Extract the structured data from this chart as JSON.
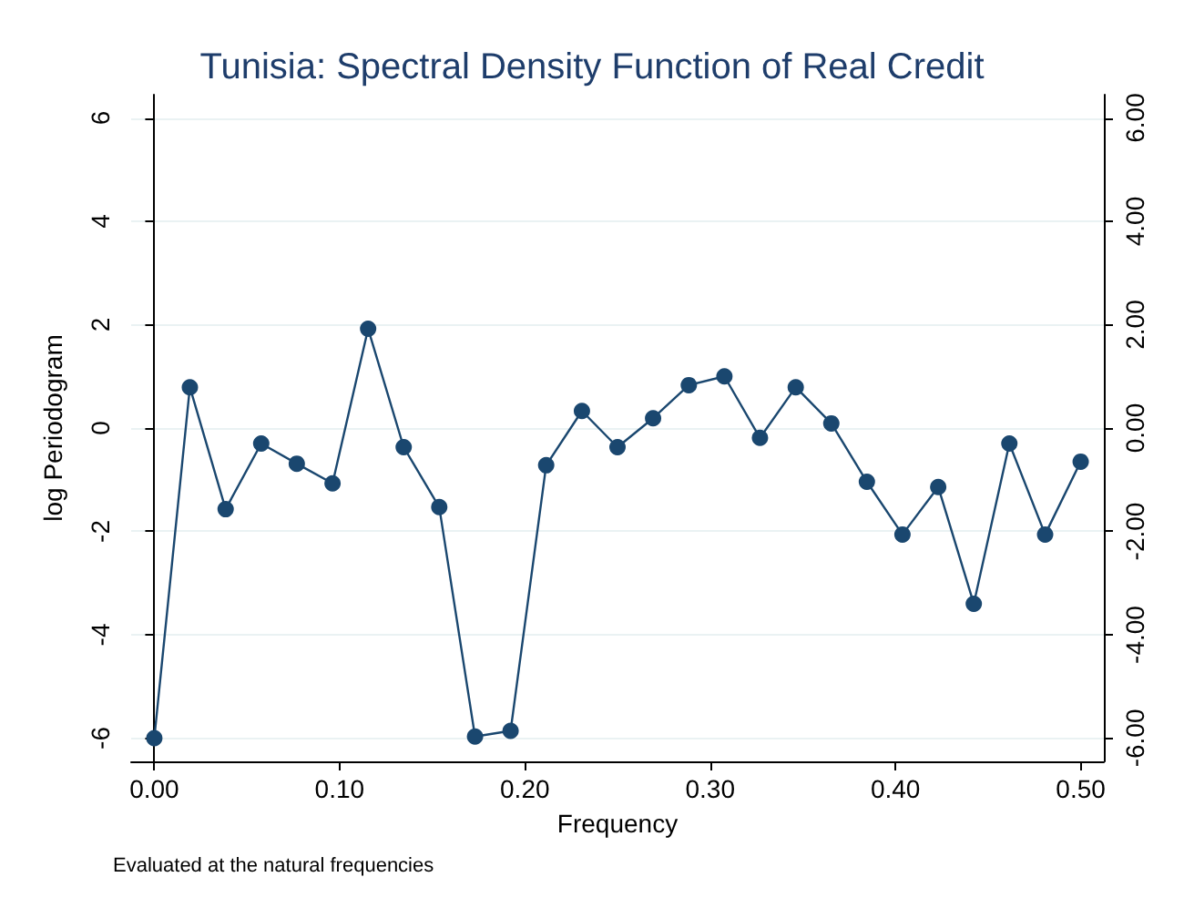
{
  "chart_data": {
    "type": "line",
    "title": "Tunisia: Spectral Density Function of Real Credit",
    "xlabel": "Frequency",
    "ylabel": "log Periodogram",
    "annotations": [
      "Evaluated at the natural frequencies"
    ],
    "x": [
      0,
      0.0192,
      0.0385,
      0.0577,
      0.0769,
      0.0962,
      0.1154,
      0.1346,
      0.1538,
      0.1731,
      0.1923,
      0.2115,
      0.2308,
      0.25,
      0.2692,
      0.2885,
      0.3077,
      0.3269,
      0.3462,
      0.3654,
      0.3846,
      0.4038,
      0.4231,
      0.4423,
      0.4615,
      0.4808,
      0.5
    ],
    "series": [
      {
        "color": "#1a476f",
        "values": [
          -6.0,
          0.79,
          -1.57,
          -0.3,
          -0.69,
          -1.07,
          1.92,
          -0.37,
          -1.53,
          -5.97,
          -5.86,
          -0.72,
          0.33,
          -0.37,
          0.19,
          0.83,
          1.0,
          -0.19,
          0.79,
          0.09,
          -1.04,
          -2.06,
          -1.14,
          -3.4,
          -0.3,
          -2.06,
          -0.65
        ]
      }
    ],
    "xlim": [
      -0.0125,
      0.5125
    ],
    "xticks": [
      {
        "value": 0,
        "label": "0.00"
      },
      {
        "value": 0.1,
        "label": "0.10"
      },
      {
        "value": 0.2,
        "label": "0.20"
      },
      {
        "value": 0.3,
        "label": "0.30"
      },
      {
        "value": 0.4,
        "label": "0.40"
      },
      {
        "value": 0.5,
        "label": "0.50"
      }
    ],
    "ylim": [
      -6.45,
      6.45
    ],
    "yticks": [
      -6,
      -4,
      -2,
      0,
      2,
      4,
      6
    ],
    "y2lim": [
      -6.45,
      6.45
    ],
    "y2ticks": [
      {
        "value": -6,
        "label": "-6.00"
      },
      {
        "value": -4,
        "label": "-4.00"
      },
      {
        "value": -2,
        "label": "-2.00"
      },
      {
        "value": 0,
        "label": "0.00"
      },
      {
        "value": 2,
        "label": "2.00"
      },
      {
        "value": 4,
        "label": "4.00"
      },
      {
        "value": 6,
        "label": "6.00"
      }
    ],
    "grid": "y",
    "marker": "circle",
    "line_style": "solid"
  }
}
